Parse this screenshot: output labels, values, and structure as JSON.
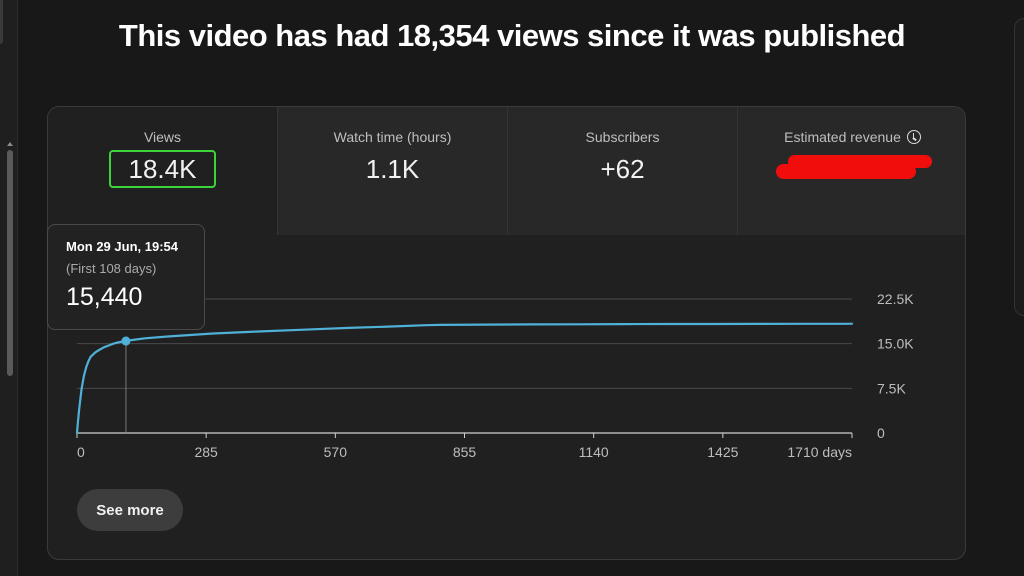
{
  "headline": "This video has had 18,354 views since it was published",
  "tabs": [
    {
      "label": "Views",
      "value": "18.4K"
    },
    {
      "label": "Watch time (hours)",
      "value": "1.1K"
    },
    {
      "label": "Subscribers",
      "value": "+62"
    },
    {
      "label": "Estimated revenue",
      "value": ""
    }
  ],
  "tooltip": {
    "date": "Mon 29 Jun, 19:54",
    "subtitle": "(First 108 days)",
    "value": "15,440"
  },
  "see_more_label": "See more",
  "colors": {
    "line": "#4fb0d8",
    "selected_outline": "#3dd33a",
    "redaction": "#f20d0d"
  },
  "icons": {
    "revenue_info": "clock-icon"
  },
  "chart_data": {
    "type": "line",
    "title": "",
    "xlabel": "",
    "ylabel": "",
    "xlim": [
      0,
      1710
    ],
    "ylim": [
      0,
      22500
    ],
    "x_ticks": [
      0,
      285,
      570,
      855,
      1140,
      1425,
      1710
    ],
    "x_tick_labels": [
      "0",
      "285",
      "570",
      "855",
      "1140",
      "1425",
      "1710 days"
    ],
    "y_ticks": [
      0,
      7500,
      15000,
      22500
    ],
    "y_tick_labels": [
      "0",
      "7.5K",
      "15.0K",
      "22.5K"
    ],
    "grid": true,
    "series": [
      {
        "name": "",
        "x": [
          0,
          2,
          5,
          10,
          15,
          20,
          25,
          30,
          40,
          50,
          60,
          70,
          80,
          90,
          100,
          108,
          120,
          150,
          200,
          250,
          300,
          400,
          500,
          600,
          700,
          770,
          800,
          900,
          1000,
          1100,
          1200,
          1300,
          1400,
          1500,
          1600,
          1700,
          1710
        ],
        "y": [
          0,
          1800,
          4200,
          7300,
          9500,
          11000,
          12000,
          12800,
          13500,
          14000,
          14400,
          14700,
          15000,
          15200,
          15350,
          15440,
          15600,
          15900,
          16200,
          16450,
          16700,
          17050,
          17350,
          17650,
          17900,
          18100,
          18150,
          18200,
          18230,
          18260,
          18280,
          18300,
          18310,
          18320,
          18330,
          18340,
          18354
        ]
      }
    ],
    "highlight_point": {
      "x": 108,
      "y": 15440
    }
  }
}
